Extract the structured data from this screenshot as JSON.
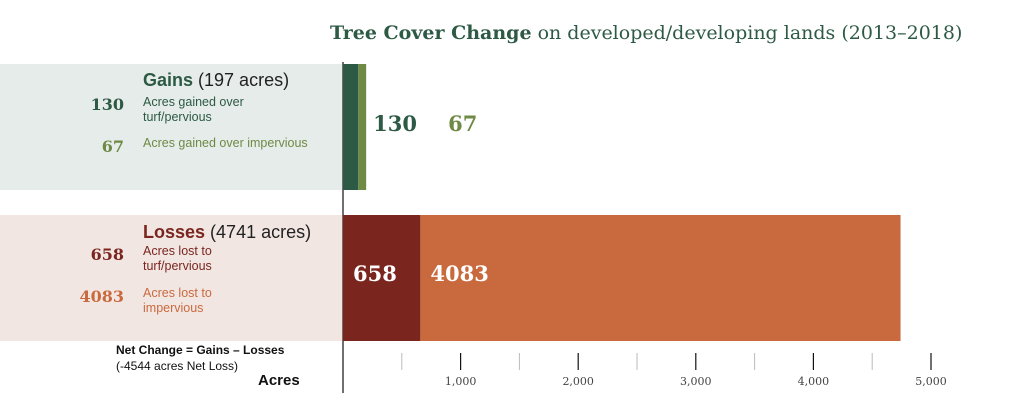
{
  "title": {
    "bold": "Tree Cover Change",
    "rest": " on developed/developing lands (2013–2018)"
  },
  "gains": {
    "heading": "Gains",
    "total": " (197 acres)",
    "items": [
      {
        "value": "130",
        "label": "Acres gained over turf/pervious"
      },
      {
        "value": "67",
        "label": "Acres gained over impervious"
      }
    ]
  },
  "losses": {
    "heading": "Losses",
    "total": " (4741 acres)",
    "items": [
      {
        "value": "658",
        "label": "Acres lost to turf/pervious"
      },
      {
        "value": "4083",
        "label": "Acres lost to impervious"
      }
    ]
  },
  "net": {
    "line1": "Net Change = Gains – Losses",
    "line2": "(-4544 acres Net Loss)"
  },
  "colors": {
    "gains_pervious": "#2d5a44",
    "gains_impervious": "#6e8a45",
    "losses_pervious": "#7a261f",
    "losses_impervious": "#c96a3e"
  },
  "chart_data": {
    "type": "bar",
    "orientation": "horizontal",
    "stacked": true,
    "categories": [
      "Gains",
      "Losses"
    ],
    "series": [
      {
        "name": "Acres gained over turf/pervious",
        "category": "Gains",
        "value": 130,
        "color": "#2d5a44"
      },
      {
        "name": "Acres gained over impervious",
        "category": "Gains",
        "value": 67,
        "color": "#6e8a45"
      },
      {
        "name": "Acres lost to turf/pervious",
        "category": "Losses",
        "value": 658,
        "color": "#7a261f"
      },
      {
        "name": "Acres lost to impervious",
        "category": "Losses",
        "value": 4083,
        "color": "#c96a3e"
      }
    ],
    "xlabel": "Acres",
    "xlim": [
      0,
      5000
    ],
    "xticks": [
      1000,
      2000,
      3000,
      4000,
      5000
    ],
    "xtick_labels": [
      "1,000",
      "2,000",
      "3,000",
      "4,000",
      "5,000"
    ],
    "minor_xticks": [
      500,
      1500,
      2500,
      3500,
      4500
    ],
    "grid": false
  }
}
